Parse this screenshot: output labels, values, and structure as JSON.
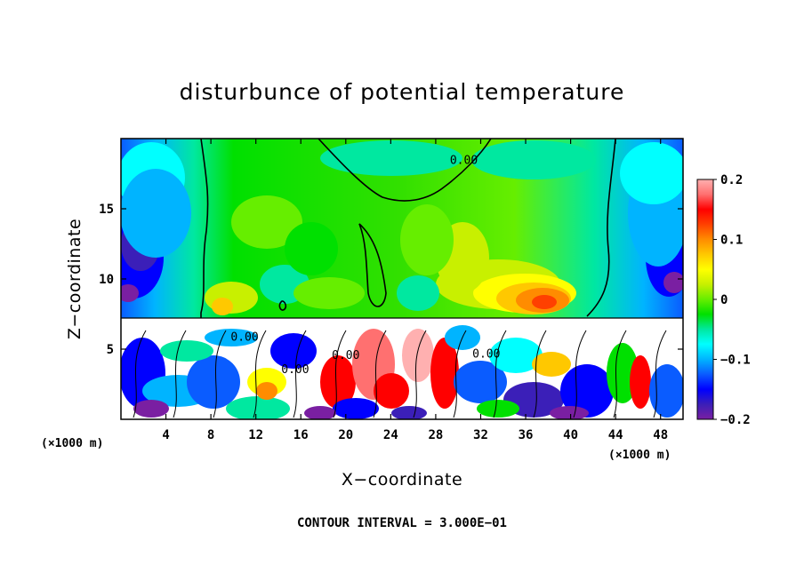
{
  "chart_data": {
    "type": "heatmap",
    "title": "disturbunce of potential temperature",
    "xlabel": "X−coordinate",
    "ylabel": "Z−coordinate",
    "x_unit_label": "(×1000 m)",
    "xlim": [
      0,
      50
    ],
    "ylim": [
      0,
      20
    ],
    "xticks": [
      4,
      8,
      12,
      16,
      20,
      24,
      28,
      32,
      36,
      40,
      44,
      48
    ],
    "yticks": [
      5,
      10,
      15
    ],
    "colorbar": {
      "range": [
        -0.2,
        0.2
      ],
      "tick_labels": [
        "0.2",
        "0.1",
        "0",
        "−0.1",
        "−0.2"
      ],
      "tick_values": [
        0.2,
        0.1,
        0,
        -0.1,
        -0.2
      ]
    },
    "contour_label": "0.00",
    "contour_label_positions": [
      [
        30.5,
        18.2
      ],
      [
        11.0,
        5.6
      ],
      [
        15.5,
        3.3
      ],
      [
        20.0,
        4.3
      ],
      [
        32.5,
        4.4
      ]
    ],
    "contour_interval_text": "CONTOUR INTERVAL = 3.000E−01"
  },
  "colors": {
    "background": "#ffffff",
    "colormap": [
      "#7a1fa2",
      "#3b1fb8",
      "#0000ff",
      "#0a5cff",
      "#00b4ff",
      "#00ffff",
      "#00e8a0",
      "#00e000",
      "#66ee00",
      "#c8f000",
      "#ffff00",
      "#ffc800",
      "#ff8c00",
      "#ff4000",
      "#ff0000",
      "#ff7070",
      "#ffb0b0"
    ]
  }
}
